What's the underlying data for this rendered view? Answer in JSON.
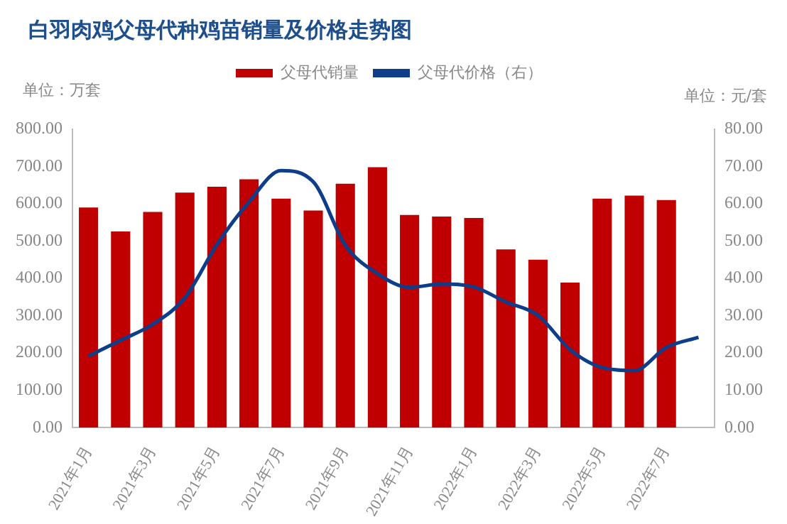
{
  "chart_data": {
    "type": "bar",
    "title": "白羽肉鸡父母代种鸡苗销量及价格走势图",
    "annotations": [
      "单位：万套",
      "单位：元/套"
    ],
    "categories": [
      "2021年1月",
      null,
      "2021年3月",
      null,
      "2021年5月",
      null,
      "2021年7月",
      null,
      "2021年9月",
      null,
      "2021年11月",
      null,
      "2022年1月",
      null,
      "2022年3月",
      null,
      "2022年5月",
      null,
      "2022年7月",
      null
    ],
    "series": [
      {
        "name": "父母代销量",
        "color": "#c00000",
        "values": [
          590,
          526,
          578,
          630,
          646,
          666,
          614,
          582,
          654,
          698,
          570,
          566,
          562,
          478,
          450,
          389,
          614,
          622,
          610,
          null
        ]
      },
      {
        "name": "父母代价格（右）",
        "type": "line",
        "axis": "y2",
        "color": "#0e3d8a",
        "values": [
          19.2,
          23.4,
          27.7,
          34.8,
          49.1,
          60.5,
          68.9,
          65.9,
          48.9,
          41.3,
          37.6,
          38.5,
          37.7,
          33.7,
          30.1,
          20.9,
          16.1,
          15.3,
          21.5,
          24.2
        ]
      }
    ],
    "ylim": [
      0,
      800
    ],
    "yticks": [
      {
        "value": 0,
        "label": "0.00"
      },
      {
        "value": 100,
        "label": "100.00"
      },
      {
        "value": 200,
        "label": "200.00"
      },
      {
        "value": 300,
        "label": "300.00"
      },
      {
        "value": 400,
        "label": "400.00"
      },
      {
        "value": 500,
        "label": "500.00"
      },
      {
        "value": 600,
        "label": "600.00"
      },
      {
        "value": 700,
        "label": "700.00"
      },
      {
        "value": 800,
        "label": "800.00"
      }
    ],
    "y2lim": [
      0,
      80
    ],
    "y2ticks": [
      {
        "value": 0,
        "label": "0.00"
      },
      {
        "value": 10,
        "label": "10.00"
      },
      {
        "value": 20,
        "label": "20.00"
      },
      {
        "value": 30,
        "label": "30.00"
      },
      {
        "value": 40,
        "label": "40.00"
      },
      {
        "value": 50,
        "label": "50.00"
      },
      {
        "value": 60,
        "label": "60.00"
      },
      {
        "value": 70,
        "label": "70.00"
      },
      {
        "value": 80,
        "label": "80.00"
      }
    ],
    "legend": "top",
    "grid": false,
    "marker": "none"
  }
}
